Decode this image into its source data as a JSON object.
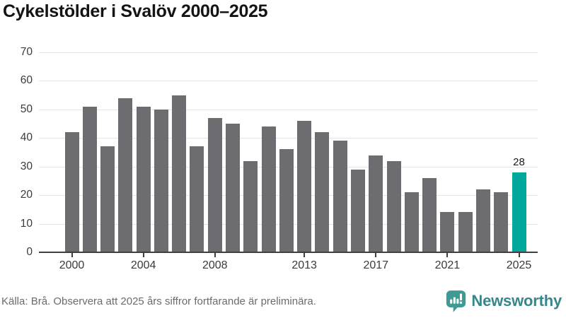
{
  "title": "Cykelstölder i Svalöv 2000–2025",
  "chart_data": {
    "type": "bar",
    "title": "Cykelstölder i Svalöv 2000–2025",
    "categories": [
      "2000",
      "2001",
      "2002",
      "2003",
      "2004",
      "2005",
      "2006",
      "2007",
      "2008",
      "2009",
      "2010",
      "2011",
      "2012",
      "2013",
      "2014",
      "2015",
      "2016",
      "2017",
      "2018",
      "2019",
      "2020",
      "2021",
      "2022",
      "2023",
      "2024",
      "2025"
    ],
    "values": [
      42,
      51,
      37,
      54,
      51,
      50,
      55,
      37,
      47,
      45,
      32,
      44,
      36,
      46,
      42,
      39,
      29,
      34,
      32,
      21,
      26,
      14,
      14,
      22,
      21,
      28
    ],
    "highlight": {
      "index": 25,
      "label": "28"
    },
    "xtick_labels": [
      "2000",
      "2004",
      "2008",
      "2013",
      "2017",
      "2021",
      "2025"
    ],
    "xtick_indices": [
      0,
      4,
      8,
      13,
      17,
      21,
      25
    ],
    "yticks": [
      0,
      10,
      20,
      30,
      40,
      50,
      60,
      70
    ],
    "ylim": [
      0,
      70
    ],
    "grid": "horizontal",
    "legend": "none",
    "bar_color": "#6d6d71",
    "highlight_color": "#00a79b"
  },
  "footer": {
    "source": "Källa: Brå. Observera att 2025 års siffror fortfarande är preliminära.",
    "brand": "Newsworthy"
  },
  "colors": {
    "title_text": "#141414",
    "axis": "#3f3f42",
    "tick_label": "#3a3a3a",
    "gridline": "#e4e4e4",
    "source_text": "#6b6b6b",
    "brand_teal": "#36878b",
    "logo_icon_teal": "#3f9a93",
    "background": "#ffffff"
  }
}
